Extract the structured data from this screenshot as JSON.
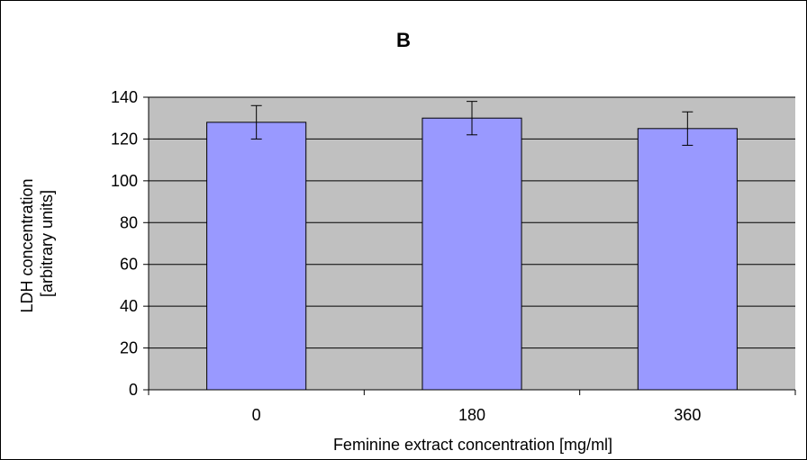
{
  "chart_data": {
    "type": "bar",
    "title": "B",
    "xlabel": "Feminine extract concentration [mg/ml]",
    "ylabel_lines": [
      "LDH concentration",
      "[arbitrary units]"
    ],
    "categories": [
      "0",
      "180",
      "360"
    ],
    "values": [
      128,
      130,
      125
    ],
    "errors": [
      8,
      8,
      8
    ],
    "ylim": [
      0,
      140
    ],
    "yticks": [
      0,
      20,
      40,
      60,
      80,
      100,
      120,
      140
    ],
    "grid": true,
    "legend": "none"
  },
  "colors": {
    "plot_background": "#c0c0c0",
    "bar_fill": "#9999ff",
    "bar_stroke": "#000000",
    "gridline": "#000000"
  }
}
